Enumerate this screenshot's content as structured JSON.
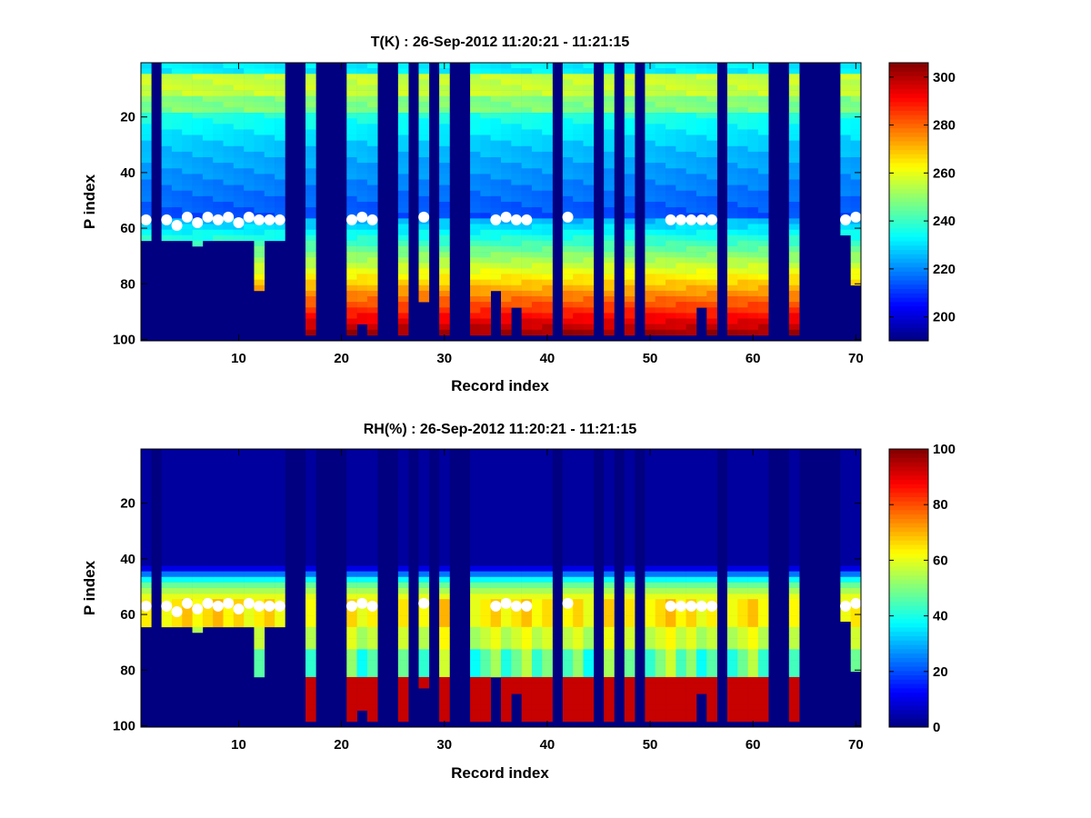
{
  "figure": {
    "background": "#ffffff",
    "colormap": "jet",
    "marker_color": "#ffffff"
  },
  "chart_data": [
    {
      "type": "heatmap",
      "title": "T(K) : 26-Sep-2012 11:20:21 - 11:21:15",
      "xlabel": "Record index",
      "ylabel": "P index",
      "xlim": [
        0.5,
        70.5
      ],
      "ylim": [
        0.5,
        100.5
      ],
      "y_reversed": true,
      "xticks": [
        "10",
        "20",
        "30",
        "40",
        "50",
        "60",
        "70"
      ],
      "yticks": [
        "20",
        "40",
        "60",
        "80",
        "100"
      ],
      "colorbar": {
        "range": [
          190,
          306
        ],
        "ticks": [
          "200",
          "220",
          "240",
          "260",
          "280",
          "300"
        ]
      },
      "field": "temperature",
      "records": 70,
      "levels": 100,
      "missing_records": [
        2,
        15,
        16,
        18,
        19,
        20,
        24,
        25,
        27,
        29,
        31,
        32,
        41,
        45,
        47,
        49,
        57,
        62,
        63,
        65,
        66,
        67,
        68
      ],
      "profile_bottom_index": {
        "1": 63,
        "3": 63,
        "4": 64,
        "5": 63,
        "6": 66,
        "7": 63,
        "8": 64,
        "9": 63,
        "10": 64,
        "11": 63,
        "12": 81,
        "13": 63,
        "14": 63,
        "17": 98,
        "21": 98,
        "22": 93,
        "23": 97,
        "26": 98,
        "28": 86,
        "30": 98,
        "33": 98,
        "34": 98,
        "35": 81,
        "36": 98,
        "37": 87,
        "38": 98,
        "39": 98,
        "40": 98,
        "42": 98,
        "43": 98,
        "44": 98,
        "46": 98,
        "48": 98,
        "50": 98,
        "51": 98,
        "52": 98,
        "53": 98,
        "54": 98,
        "55": 87,
        "56": 98,
        "58": 98,
        "59": 98,
        "60": 98,
        "61": 98,
        "64": 98,
        "69": 62,
        "70": 80
      },
      "surface_markers": [
        [
          1,
          57
        ],
        [
          3,
          57
        ],
        [
          4,
          59
        ],
        [
          5,
          56
        ],
        [
          6,
          58
        ],
        [
          7,
          56
        ],
        [
          8,
          57
        ],
        [
          9,
          56
        ],
        [
          10,
          58
        ],
        [
          11,
          56
        ],
        [
          12,
          57
        ],
        [
          13,
          57
        ],
        [
          14,
          57
        ],
        [
          21,
          57
        ],
        [
          22,
          56
        ],
        [
          23,
          57
        ],
        [
          28,
          56
        ],
        [
          35,
          57
        ],
        [
          36,
          56
        ],
        [
          37,
          57
        ],
        [
          38,
          57
        ],
        [
          42,
          56
        ],
        [
          52,
          57
        ],
        [
          53,
          57
        ],
        [
          54,
          57
        ],
        [
          55,
          57
        ],
        [
          56,
          57
        ],
        [
          69,
          57
        ],
        [
          70,
          56
        ]
      ]
    },
    {
      "type": "heatmap",
      "title": "RH(%) : 26-Sep-2012 11:20:21 - 11:21:15",
      "xlabel": "Record index",
      "ylabel": "P index",
      "xlim": [
        0.5,
        70.5
      ],
      "ylim": [
        0.5,
        100.5
      ],
      "y_reversed": true,
      "xticks": [
        "10",
        "20",
        "30",
        "40",
        "50",
        "60",
        "70"
      ],
      "yticks": [
        "20",
        "40",
        "60",
        "80",
        "100"
      ],
      "colorbar": {
        "range": [
          0,
          100
        ],
        "ticks": [
          "0",
          "20",
          "40",
          "60",
          "80",
          "100"
        ]
      },
      "field": "relative_humidity",
      "records": 70,
      "levels": 100,
      "missing_records": [
        2,
        15,
        16,
        18,
        19,
        20,
        24,
        25,
        27,
        29,
        31,
        32,
        41,
        45,
        47,
        49,
        57,
        62,
        63,
        65,
        66,
        67,
        68
      ],
      "profile_bottom_index": {
        "1": 63,
        "3": 63,
        "4": 64,
        "5": 63,
        "6": 66,
        "7": 63,
        "8": 64,
        "9": 63,
        "10": 64,
        "11": 63,
        "12": 81,
        "13": 63,
        "14": 63,
        "17": 98,
        "21": 98,
        "22": 93,
        "23": 97,
        "26": 98,
        "28": 86,
        "30": 98,
        "33": 98,
        "34": 98,
        "35": 81,
        "36": 98,
        "37": 87,
        "38": 98,
        "39": 98,
        "40": 98,
        "42": 98,
        "43": 98,
        "44": 98,
        "46": 98,
        "48": 98,
        "50": 98,
        "51": 98,
        "52": 98,
        "53": 98,
        "54": 98,
        "55": 87,
        "56": 98,
        "58": 98,
        "59": 98,
        "60": 98,
        "61": 98,
        "64": 98,
        "69": 62,
        "70": 80
      },
      "surface_markers": [
        [
          1,
          57
        ],
        [
          3,
          57
        ],
        [
          4,
          59
        ],
        [
          5,
          56
        ],
        [
          6,
          58
        ],
        [
          7,
          56
        ],
        [
          8,
          57
        ],
        [
          9,
          56
        ],
        [
          10,
          58
        ],
        [
          11,
          56
        ],
        [
          12,
          57
        ],
        [
          13,
          57
        ],
        [
          14,
          57
        ],
        [
          21,
          57
        ],
        [
          22,
          56
        ],
        [
          23,
          57
        ],
        [
          28,
          56
        ],
        [
          35,
          57
        ],
        [
          36,
          56
        ],
        [
          37,
          57
        ],
        [
          38,
          57
        ],
        [
          42,
          56
        ],
        [
          52,
          57
        ],
        [
          53,
          57
        ],
        [
          54,
          57
        ],
        [
          55,
          57
        ],
        [
          56,
          57
        ],
        [
          69,
          57
        ],
        [
          70,
          56
        ]
      ]
    }
  ]
}
